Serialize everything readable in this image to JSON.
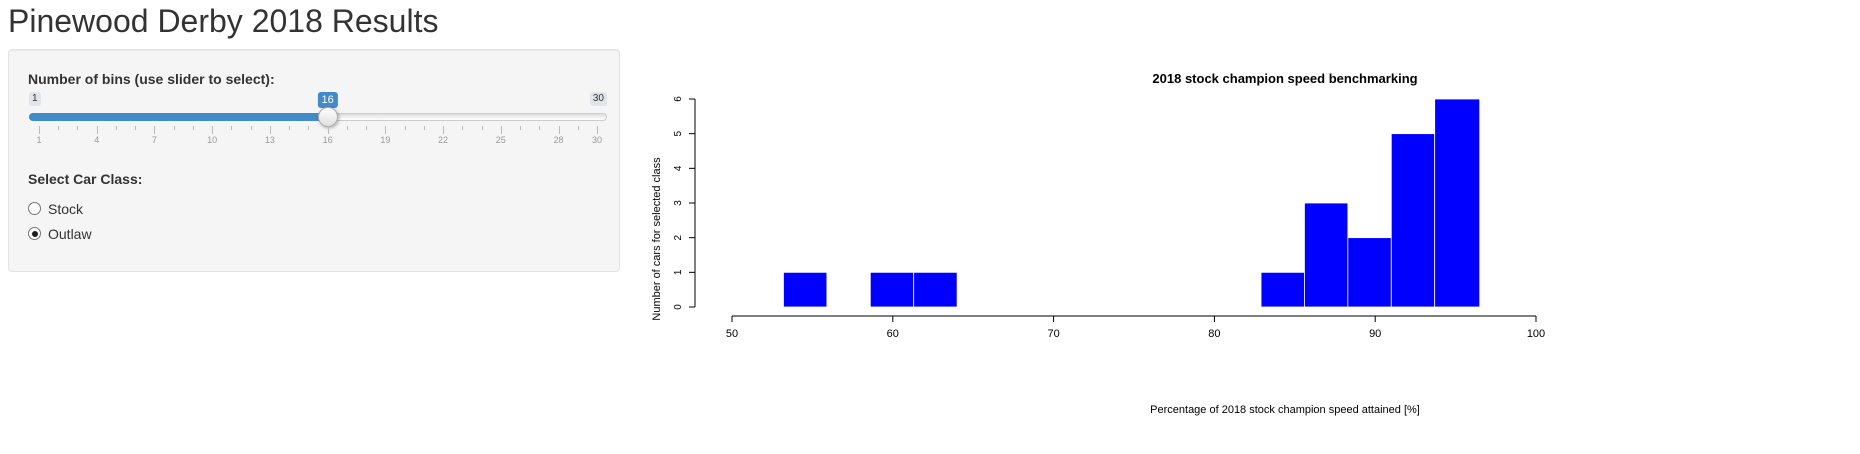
{
  "page": {
    "title": "Pinewood Derby 2018 Results"
  },
  "sidebar": {
    "slider": {
      "label": "Number of bins (use slider to select):",
      "min_label": "1",
      "max_label": "30",
      "min": 1,
      "max": 30,
      "value": 16,
      "value_label": "16",
      "grid_labels": [
        "1",
        "4",
        "7",
        "10",
        "13",
        "16",
        "19",
        "22",
        "25",
        "28",
        "30"
      ]
    },
    "car_class": {
      "label": "Select Car Class:",
      "options": [
        {
          "label": "Stock",
          "checked": false
        },
        {
          "label": "Outlaw",
          "checked": true
        }
      ]
    }
  },
  "chart_data": {
    "type": "histogram",
    "title": "2018 stock champion speed benchmarking",
    "xlabel": "Percentage of 2018 stock champion speed attained [%]",
    "ylabel": "Number of cars for selected class",
    "xlim": [
      50,
      100
    ],
    "ylim": [
      0,
      6
    ],
    "x_ticks": [
      "50",
      "60",
      "70",
      "80",
      "90",
      "100"
    ],
    "y_ticks": [
      "0",
      "1",
      "2",
      "3",
      "4",
      "5",
      "6"
    ],
    "bar_color": "#0000ff",
    "bins": [
      {
        "start": 53.2,
        "end": 55.9,
        "count": 1
      },
      {
        "start": 58.6,
        "end": 61.3,
        "count": 1
      },
      {
        "start": 61.3,
        "end": 64.0,
        "count": 1
      },
      {
        "start": 82.9,
        "end": 85.6,
        "count": 1
      },
      {
        "start": 85.6,
        "end": 88.3,
        "count": 3
      },
      {
        "start": 88.3,
        "end": 91.0,
        "count": 2
      },
      {
        "start": 91.0,
        "end": 93.7,
        "count": 5
      },
      {
        "start": 93.7,
        "end": 96.5,
        "count": 6
      }
    ]
  }
}
